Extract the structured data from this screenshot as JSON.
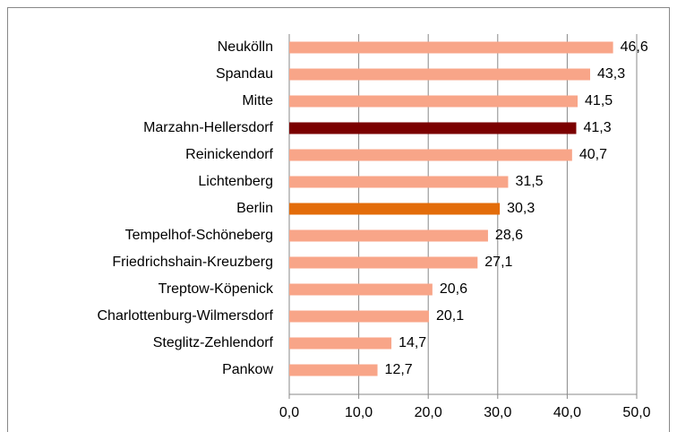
{
  "chart_data": {
    "type": "barh",
    "categories": [
      "Neukölln",
      "Spandau",
      "Mitte",
      "Marzahn-Hellersdorf",
      "Reinickendorf",
      "Lichtenberg",
      "Berlin",
      "Tempelhof-Schöneberg",
      "Friedrichshain-Kreuzberg",
      "Treptow-Köpenick",
      "Charlottenburg-Wilmersdorf",
      "Steglitz-Zehlendorf",
      "Pankow"
    ],
    "values": [
      46.6,
      43.3,
      41.5,
      41.3,
      40.7,
      31.5,
      30.3,
      28.6,
      27.1,
      20.6,
      20.1,
      14.7,
      12.7
    ],
    "value_labels": [
      "46,6",
      "43,3",
      "41,5",
      "41,3",
      "40,7",
      "31,5",
      "30,3",
      "28,6",
      "27,1",
      "20,6",
      "20,1",
      "14,7",
      "12,7"
    ],
    "colors": [
      "#f8a588",
      "#f8a588",
      "#f8a588",
      "#7b0000",
      "#f8a588",
      "#f8a588",
      "#e36c0a",
      "#f8a588",
      "#f8a588",
      "#f8a588",
      "#f8a588",
      "#f8a588",
      "#f8a588"
    ],
    "xlim": [
      0,
      50
    ],
    "xticks": [
      {
        "value": 0,
        "label": "0,0"
      },
      {
        "value": 10,
        "label": "10,0"
      },
      {
        "value": 20,
        "label": "20,0"
      },
      {
        "value": 30,
        "label": "30,0"
      },
      {
        "value": 40,
        "label": "40,0"
      },
      {
        "value": 50,
        "label": "50,0"
      }
    ],
    "grid": true
  }
}
